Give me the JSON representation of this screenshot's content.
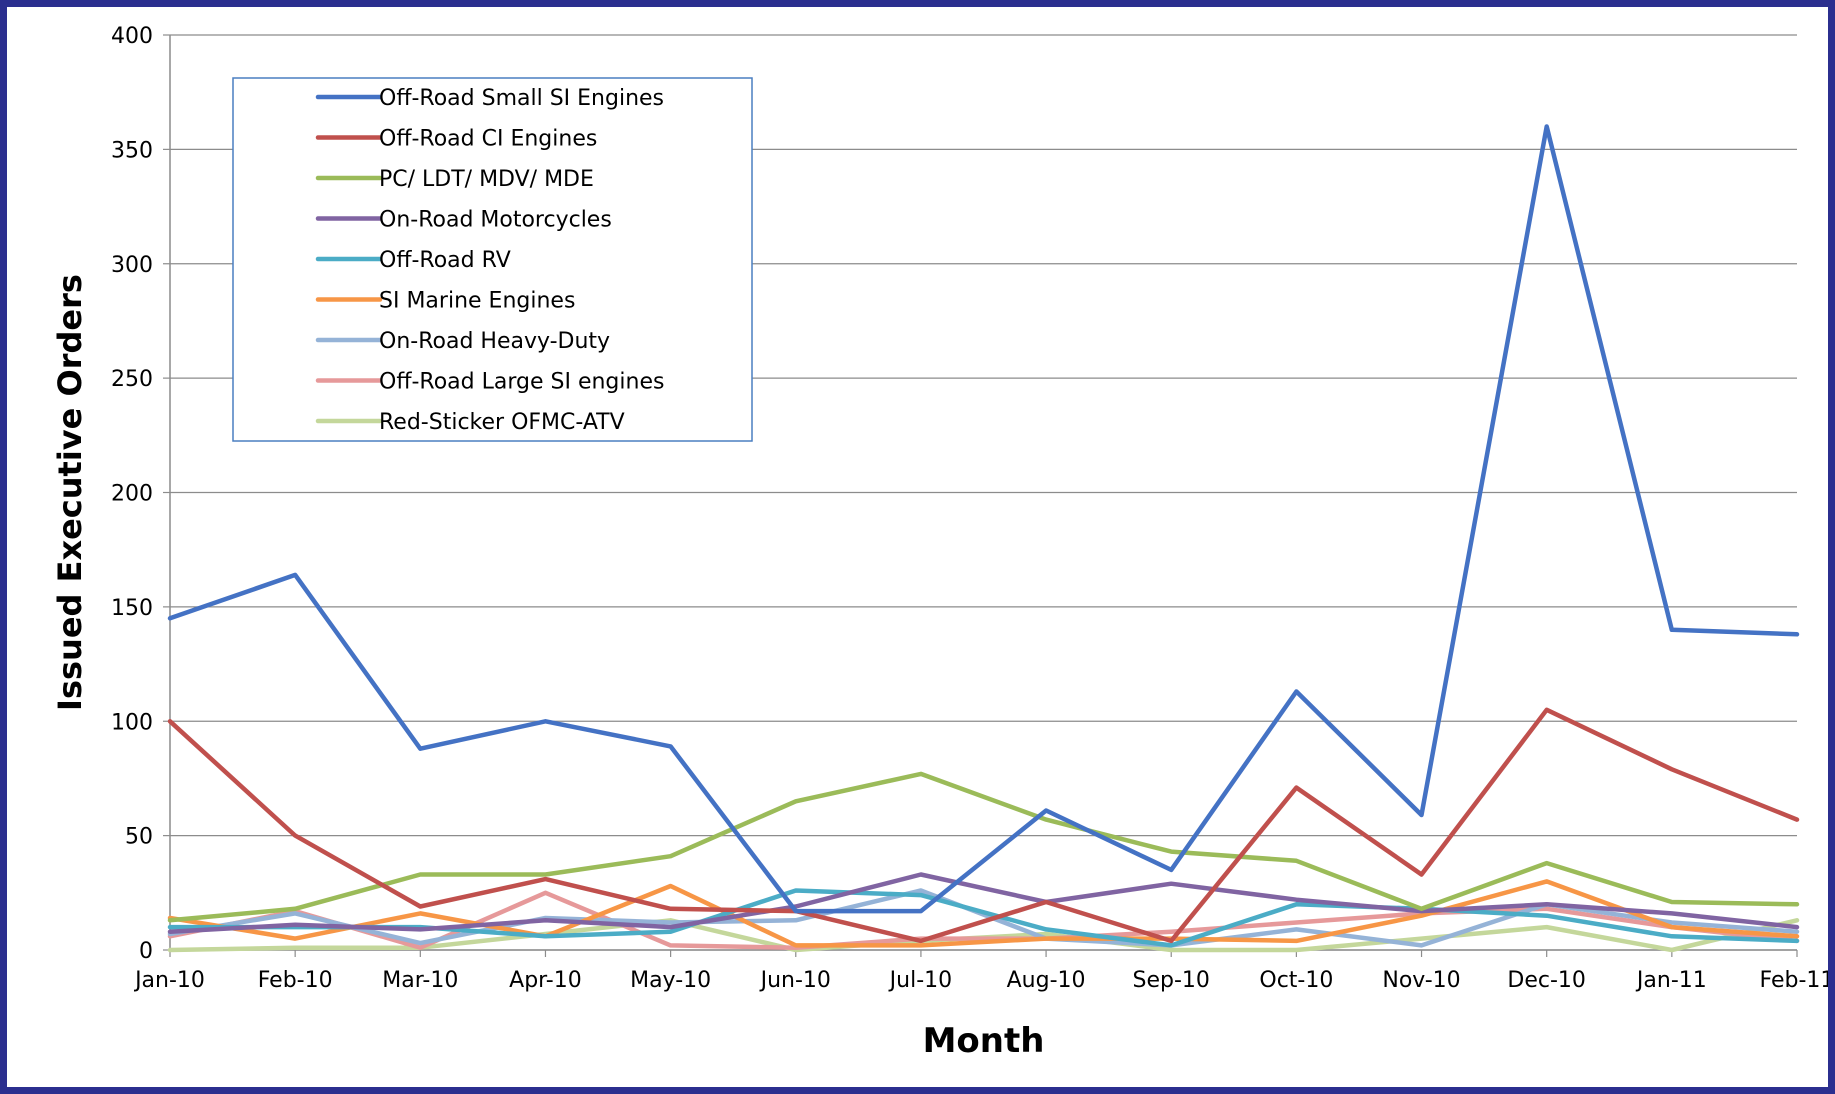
{
  "chart_data": {
    "type": "line",
    "title": "",
    "xlabel": "Month",
    "ylabel": "Issued Executive Orders",
    "ylim": [
      0,
      400
    ],
    "yticks": [
      0,
      50,
      100,
      150,
      200,
      250,
      300,
      350,
      400
    ],
    "grid": "horizontal",
    "legend_position": "top-left",
    "categories": [
      "Jan-10",
      "Feb-10",
      "Mar-10",
      "Apr-10",
      "May-10",
      "Jun-10",
      "Jul-10",
      "Aug-10",
      "Sep-10",
      "Oct-10",
      "Nov-10",
      "Dec-10",
      "Jan-11",
      "Feb-11"
    ],
    "series": [
      {
        "name": "Off-Road Small SI Engines",
        "color": "#4472c4",
        "values": [
          145,
          164,
          88,
          100,
          89,
          17,
          17,
          61,
          35,
          113,
          59,
          360,
          140,
          138
        ]
      },
      {
        "name": "Off-Road CI Engines",
        "color": "#c0504d",
        "values": [
          100,
          50,
          19,
          31,
          18,
          17,
          4,
          21,
          4,
          71,
          33,
          105,
          79,
          57
        ]
      },
      {
        "name": "PC/ LDT/ MDV/ MDE",
        "color": "#9bbb59",
        "values": [
          13,
          18,
          33,
          33,
          41,
          65,
          77,
          57,
          43,
          39,
          18,
          38,
          21,
          20
        ]
      },
      {
        "name": "On-Road Motorcycles",
        "color": "#8064a2",
        "values": [
          8,
          11,
          9,
          13,
          10,
          19,
          33,
          21,
          29,
          22,
          17,
          20,
          16,
          10
        ]
      },
      {
        "name": "Off-Road RV",
        "color": "#4bacc6",
        "values": [
          10,
          10,
          10,
          6,
          8,
          26,
          24,
          9,
          2,
          20,
          18,
          15,
          6,
          4
        ]
      },
      {
        "name": "SI Marine Engines",
        "color": "#f79646",
        "values": [
          14,
          5,
          16,
          6,
          28,
          2,
          2,
          5,
          5,
          4,
          15,
          30,
          10,
          6
        ]
      },
      {
        "name": "On-Road Heavy-Duty",
        "color": "#95b3d7",
        "values": [
          7,
          16,
          3,
          14,
          12,
          13,
          26,
          5,
          2,
          9,
          2,
          20,
          12,
          8
        ]
      },
      {
        "name": "Off-Road Large SI engines",
        "color": "#e6999a",
        "values": [
          6,
          17,
          1,
          25,
          2,
          1,
          5,
          5,
          8,
          12,
          16,
          18,
          10,
          4
        ]
      },
      {
        "name": "Red-Sticker OFMC-ATV",
        "color": "#c4d79b",
        "values": [
          0,
          1,
          1,
          7,
          13,
          0,
          4,
          7,
          0,
          0,
          5,
          10,
          0,
          13
        ]
      }
    ]
  }
}
